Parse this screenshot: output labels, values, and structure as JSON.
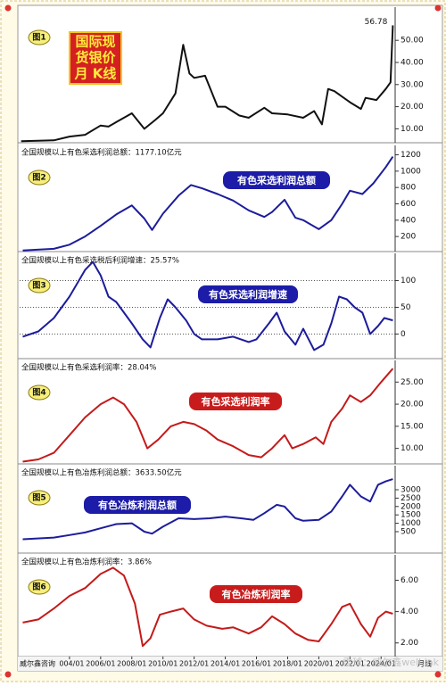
{
  "chart_data": [
    {
      "type": "line",
      "badge": "图1",
      "title": [
        "国际现",
        "货银价",
        "月 K线"
      ],
      "color": "#111111",
      "x": [
        2000.9,
        2002,
        2003,
        2004,
        2005,
        2006,
        2006.5,
        2007,
        2008,
        2008.8,
        2009.5,
        2010,
        2010.8,
        2011.3,
        2011.7,
        2012,
        2012.7,
        2013.5,
        2014,
        2014.9,
        2015.5,
        2016.5,
        2017,
        2018,
        2019,
        2019.7,
        2020.2,
        2020.6,
        2021,
        2022,
        2022.7,
        2023,
        2023.7,
        2024.3,
        2024.6,
        2024.75
      ],
      "values": [
        4.4,
        4.6,
        4.8,
        6.5,
        7.3,
        11.5,
        11,
        13,
        17,
        10,
        14,
        17,
        26,
        48,
        35,
        33,
        34,
        20,
        20,
        16,
        15,
        19.5,
        17,
        16.5,
        15,
        18,
        12,
        28,
        27,
        22,
        19,
        24,
        23,
        28,
        31,
        56.78
      ],
      "xlim": [
        2000.8,
        2024.9
      ],
      "ylim": [
        3.7,
        65
      ],
      "yticks": [
        {
          "value": 10,
          "label": "10.00"
        },
        {
          "value": 20,
          "label": "20.00"
        },
        {
          "value": 30,
          "label": "30.00"
        },
        {
          "value": 40,
          "label": "40.00"
        },
        {
          "value": 50,
          "label": "50.00"
        }
      ],
      "grid": false
    },
    {
      "type": "line",
      "badge": "图2",
      "subtitle": "全国规模以上有色采选利润总额：1177.10亿元",
      "title": "有色采选利润总额",
      "color": "#1c1c9c",
      "x": [
        2001,
        2003,
        2004,
        2005,
        2006,
        2007,
        2008,
        2008.8,
        2009.3,
        2010,
        2011,
        2011.8,
        2012.5,
        2013.5,
        2014.5,
        2015.5,
        2016.5,
        2017,
        2017.8,
        2018.5,
        2019,
        2020,
        2020.8,
        2021.5,
        2022,
        2022.8,
        2023.5,
        2024.3,
        2024.75
      ],
      "values": [
        30,
        50,
        100,
        200,
        330,
        470,
        580,
        420,
        280,
        480,
        700,
        830,
        790,
        720,
        640,
        520,
        440,
        500,
        650,
        430,
        400,
        290,
        400,
        600,
        760,
        720,
        850,
        1050,
        1177.1
      ],
      "xlim": [
        2000.8,
        2024.9
      ],
      "ylim": [
        16,
        1315
      ],
      "yticks": [
        200,
        400,
        600,
        800,
        1000,
        1200
      ],
      "grid": false
    },
    {
      "type": "line",
      "badge": "图3",
      "subtitle": "全国规模以上有色采选税后利润增速：25.57%",
      "title": "有色采选利润增速",
      "color": "#1c1c9c",
      "x": [
        2001,
        2002,
        2003,
        2004,
        2005,
        2005.5,
        2006,
        2006.5,
        2007,
        2008,
        2008.7,
        2009.2,
        2009.8,
        2010.3,
        2010.8,
        2011.5,
        2012,
        2012.5,
        2013.5,
        2014.5,
        2015.5,
        2016,
        2016.8,
        2017.3,
        2017.8,
        2018.5,
        2019,
        2019.7,
        2020.3,
        2020.8,
        2021.3,
        2021.8,
        2022.3,
        2022.8,
        2023.3,
        2023.8,
        2024.2,
        2024.75
      ],
      "values": [
        -5,
        5,
        30,
        70,
        120,
        135,
        110,
        70,
        60,
        20,
        -10,
        -25,
        30,
        65,
        50,
        25,
        0,
        -10,
        -10,
        -5,
        -15,
        -10,
        20,
        40,
        5,
        -20,
        10,
        -30,
        -20,
        20,
        70,
        65,
        50,
        40,
        0,
        15,
        30,
        25.57
      ],
      "xlim": [
        2000.8,
        2024.9
      ],
      "ylim": [
        -46,
        151
      ],
      "yticks": [
        0,
        50,
        100
      ],
      "grid": true
    },
    {
      "type": "line",
      "badge": "图4",
      "subtitle": "全国规模以上有色采选利润率：28.04%",
      "title": "有色采选利润率",
      "color": "#c41a1a",
      "x": [
        2001,
        2002,
        2003,
        2004,
        2005,
        2006,
        2006.8,
        2007.5,
        2008.3,
        2009,
        2009.7,
        2010.5,
        2011.3,
        2012,
        2012.8,
        2013.5,
        2014.5,
        2015.5,
        2016.3,
        2017,
        2017.8,
        2018.3,
        2019,
        2019.8,
        2020.3,
        2020.8,
        2021.5,
        2022,
        2022.7,
        2023.3,
        2024,
        2024.75
      ],
      "values": [
        7,
        7.5,
        9,
        13,
        17,
        20,
        21.5,
        20,
        16,
        10,
        12,
        15,
        16,
        15.5,
        14,
        12,
        10.5,
        8.5,
        8,
        10,
        13,
        10,
        11,
        12.5,
        11,
        16,
        19,
        22,
        20.5,
        22,
        25,
        28.04
      ],
      "xlim": [
        2000.8,
        2024.9
      ],
      "ylim": [
        6.5,
        29.9
      ],
      "yticks": [
        {
          "value": 10,
          "label": "10.00"
        },
        {
          "value": 15,
          "label": "15.00"
        },
        {
          "value": 20,
          "label": "20.00"
        },
        {
          "value": 25,
          "label": "25.00"
        }
      ],
      "grid": false
    },
    {
      "type": "line",
      "badge": "图5",
      "subtitle": "全国规模以上有色冶炼利润总额：3633.50亿元",
      "title": "有色冶炼利润总额",
      "color": "#1c1c9c",
      "x": [
        2001,
        2003,
        2004,
        2005,
        2006,
        2007,
        2008,
        2008.8,
        2009.3,
        2010,
        2011,
        2012,
        2013,
        2014,
        2015,
        2015.8,
        2016.5,
        2017.3,
        2017.8,
        2018.5,
        2019,
        2020,
        2020.8,
        2021.5,
        2022,
        2022.7,
        2023.3,
        2023.8,
        2024.3,
        2024.75
      ],
      "values": [
        50,
        150,
        300,
        450,
        700,
        950,
        1000,
        500,
        380,
        800,
        1300,
        1250,
        1300,
        1400,
        1300,
        1200,
        1600,
        2100,
        2000,
        1300,
        1150,
        1200,
        1700,
        2600,
        3300,
        2600,
        2300,
        3300,
        3500,
        3633.5
      ],
      "xlim": [
        2000.8,
        2024.9
      ],
      "ylim": [
        -777,
        4436
      ],
      "yticks": [
        500,
        1000,
        1500,
        2000,
        2500,
        3000
      ],
      "grid": false
    },
    {
      "type": "line",
      "badge": "图6",
      "subtitle": "全国规模以上有色冶炼利润率：3.86%",
      "title": "有色冶炼利润率",
      "color": "#c41a1a",
      "x": [
        2001,
        2002,
        2003,
        2004,
        2005,
        2006,
        2006.8,
        2007.5,
        2008.2,
        2008.7,
        2009.2,
        2009.8,
        2010.5,
        2011.3,
        2012,
        2012.8,
        2013.8,
        2014.5,
        2015.5,
        2016.3,
        2017,
        2017.8,
        2018.5,
        2019.3,
        2020,
        2020.8,
        2021.5,
        2022,
        2022.7,
        2023.3,
        2023.8,
        2024.3,
        2024.75
      ],
      "values": [
        3.3,
        3.5,
        4.2,
        5,
        5.5,
        6.4,
        6.8,
        6.3,
        4.5,
        1.8,
        2.3,
        3.8,
        4,
        4.2,
        3.5,
        3.1,
        2.9,
        3,
        2.6,
        3,
        3.7,
        3.2,
        2.6,
        2.2,
        2.1,
        3.2,
        4.3,
        4.5,
        3.2,
        2.4,
        3.6,
        4,
        3.86
      ],
      "xlim": [
        2000.8,
        2024.9
      ],
      "ylim": [
        1.13,
        7.62
      ],
      "yticks": [
        {
          "value": 2,
          "label": "2.00"
        },
        {
          "value": 4,
          "label": "4.00"
        },
        {
          "value": 6,
          "label": "6.00"
        }
      ],
      "grid": false,
      "source": "威尔鑫咨询",
      "xlabel": "月线",
      "watermark": "雪球：威尔鑫well.ink",
      "xticks": [
        {
          "value": 2004,
          "label": "2004/01"
        },
        {
          "value": 2006,
          "label": "2006/01"
        },
        {
          "value": 2008,
          "label": "2008/01"
        },
        {
          "value": 2010,
          "label": "2010/01"
        },
        {
          "value": 2012,
          "label": "2012/01"
        },
        {
          "value": 2014,
          "label": "2014/01"
        },
        {
          "value": 2016,
          "label": "2016/01"
        },
        {
          "value": 2018,
          "label": "2018/01"
        },
        {
          "value": 2020,
          "label": "2020/01"
        },
        {
          "value": 2022,
          "label": "2022/01"
        },
        {
          "value": 2024,
          "label": "2024/01"
        }
      ]
    }
  ]
}
